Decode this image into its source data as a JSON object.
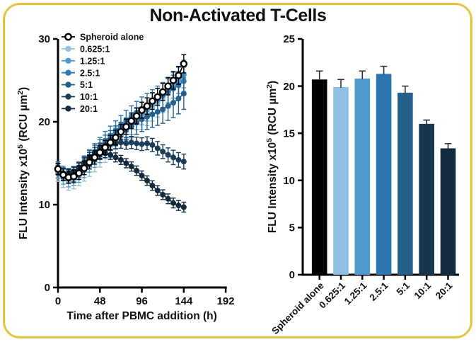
{
  "figure": {
    "title": "Non-Activated T-Cells",
    "border_color": "#E8C33E",
    "background": "#FFFFFF",
    "text_color": "#111111"
  },
  "legend": {
    "position": "top-left-inside",
    "items": [
      {
        "label": "Spheroid alone",
        "color": "#000000",
        "open_marker": true
      },
      {
        "label": "0.625:1",
        "color": "#92C1E2",
        "open_marker": false
      },
      {
        "label": "1.25:1",
        "color": "#4F9BD1",
        "open_marker": false
      },
      {
        "label": "2.5:1",
        "color": "#2E77B2",
        "open_marker": false
      },
      {
        "label": "5:1",
        "color": "#25608C",
        "open_marker": false
      },
      {
        "label": "10:1",
        "color": "#1B3D59",
        "open_marker": false
      },
      {
        "label": "20:1",
        "color": "#13293E",
        "open_marker": false
      }
    ]
  },
  "chart_data": [
    {
      "type": "line",
      "title": "",
      "xlabel": "Time after PBMC addition (h)",
      "ylabel": "FLU Intensity x10^5 (RCU um^2)",
      "ylabel_parts": [
        [
          "FLU Intensity x10",
          false
        ],
        [
          "5",
          true
        ],
        [
          " (RCU µm",
          false
        ],
        [
          "2",
          true
        ],
        [
          ")",
          false
        ]
      ],
      "xlim": [
        0,
        192
      ],
      "ylim": [
        0,
        30
      ],
      "xticks": [
        0,
        48,
        96,
        144,
        192
      ],
      "yticks": [
        0,
        10,
        20,
        30
      ],
      "grid": false,
      "legend_position": "top-left-inside",
      "x": [
        0,
        6,
        12,
        18,
        24,
        30,
        36,
        42,
        48,
        54,
        60,
        66,
        72,
        78,
        84,
        90,
        96,
        102,
        108,
        114,
        120,
        126,
        132,
        138,
        144
      ],
      "series": [
        {
          "name": "0.625:1",
          "color": "#92C1E2",
          "open_marker": false,
          "err": [
            1.1,
            1.9
          ],
          "values": [
            13.9,
            13.2,
            12.9,
            13.1,
            13.5,
            14.1,
            14.7,
            15.3,
            15.9,
            16.5,
            17.1,
            17.7,
            18.3,
            18.9,
            19.5,
            20.1,
            20.7,
            21.2,
            21.8,
            22.3,
            22.9,
            23.5,
            24.1,
            24.8,
            25.6
          ]
        },
        {
          "name": "1.25:1",
          "color": "#4F9BD1",
          "open_marker": false,
          "err": [
            0.9,
            1.6
          ],
          "values": [
            14.1,
            13.4,
            13.1,
            13.3,
            13.7,
            14.3,
            15.0,
            15.6,
            16.2,
            16.8,
            17.4,
            18.0,
            18.6,
            19.2,
            19.8,
            20.4,
            21.0,
            21.5,
            22.1,
            22.6,
            23.2,
            23.8,
            24.4,
            25.0,
            25.7
          ]
        },
        {
          "name": "2.5:1",
          "color": "#2E77B2",
          "open_marker": false,
          "err": [
            0.8,
            1.7
          ],
          "values": [
            14.4,
            13.8,
            13.5,
            13.7,
            14.2,
            14.9,
            15.6,
            16.3,
            17.0,
            17.7,
            18.3,
            18.9,
            19.5,
            20.1,
            20.6,
            21.1,
            21.6,
            22.0,
            22.4,
            22.8,
            23.2,
            23.6,
            24.0,
            24.4,
            24.9
          ]
        },
        {
          "name": "5:1",
          "color": "#25608C",
          "open_marker": false,
          "err": [
            0.6,
            1.9
          ],
          "values": [
            14.3,
            13.8,
            13.6,
            13.8,
            14.3,
            14.9,
            15.6,
            16.2,
            16.8,
            17.3,
            17.8,
            18.3,
            18.7,
            19.1,
            19.5,
            19.9,
            20.3,
            20.6,
            20.9,
            21.2,
            21.5,
            21.9,
            22.3,
            22.8,
            23.4
          ]
        },
        {
          "name": "10:1",
          "color": "#1B3D59",
          "open_marker": false,
          "err": [
            0.5,
            0.9
          ],
          "values": [
            14.2,
            13.8,
            13.7,
            14.0,
            14.5,
            15.1,
            15.7,
            16.3,
            16.8,
            17.1,
            17.3,
            17.4,
            17.5,
            17.4,
            17.5,
            17.4,
            17.3,
            17.4,
            17.2,
            16.8,
            16.4,
            16.0,
            15.7,
            15.4,
            15.2
          ]
        },
        {
          "name": "20:1",
          "color": "#13293E",
          "open_marker": false,
          "err": [
            0.5,
            0.6
          ],
          "values": [
            14.2,
            13.8,
            13.7,
            14.0,
            14.5,
            15.0,
            15.5,
            15.8,
            16.1,
            16.2,
            16.0,
            15.7,
            15.4,
            15.0,
            14.6,
            14.1,
            13.5,
            12.9,
            12.3,
            11.7,
            11.2,
            10.7,
            10.2,
            9.9,
            9.7
          ]
        },
        {
          "name": "Spheroid alone",
          "color": "#000000",
          "open_marker": true,
          "err": [
            0.7,
            1.1
          ],
          "values": [
            14.3,
            13.6,
            13.3,
            13.4,
            13.8,
            14.4,
            15.1,
            15.7,
            16.3,
            16.9,
            17.5,
            18.1,
            18.8,
            19.4,
            20.1,
            20.7,
            21.4,
            21.9,
            22.5,
            23.0,
            23.6,
            24.3,
            25.0,
            25.6,
            27.0
          ]
        }
      ]
    },
    {
      "type": "bar",
      "title": "",
      "xlabel": "",
      "ylabel": "FLU Intensity x10^5 (RCU um^2)",
      "ylabel_parts": [
        [
          "FLU Intensity x10",
          false
        ],
        [
          "5",
          true
        ],
        [
          " (RCU µm",
          false
        ],
        [
          "2",
          true
        ],
        [
          ")",
          false
        ]
      ],
      "ylim": [
        0,
        25
      ],
      "yticks": [
        0,
        5,
        10,
        15,
        20,
        25
      ],
      "grid": false,
      "categories": [
        "Spheroid alone",
        "0.625:1",
        "1.25:1",
        "2.5:1",
        "5:1",
        "10:1",
        "20:1"
      ],
      "values": [
        20.7,
        19.9,
        20.8,
        21.3,
        19.3,
        16.0,
        13.4
      ],
      "errors": [
        0.9,
        0.8,
        0.8,
        0.8,
        0.7,
        0.4,
        0.5
      ],
      "colors": [
        "#000000",
        "#8FC0E1",
        "#4E9ACF",
        "#2E76B0",
        "#25608C",
        "#17364F",
        "#132B41"
      ],
      "error_color": "#2F2F2F"
    }
  ]
}
